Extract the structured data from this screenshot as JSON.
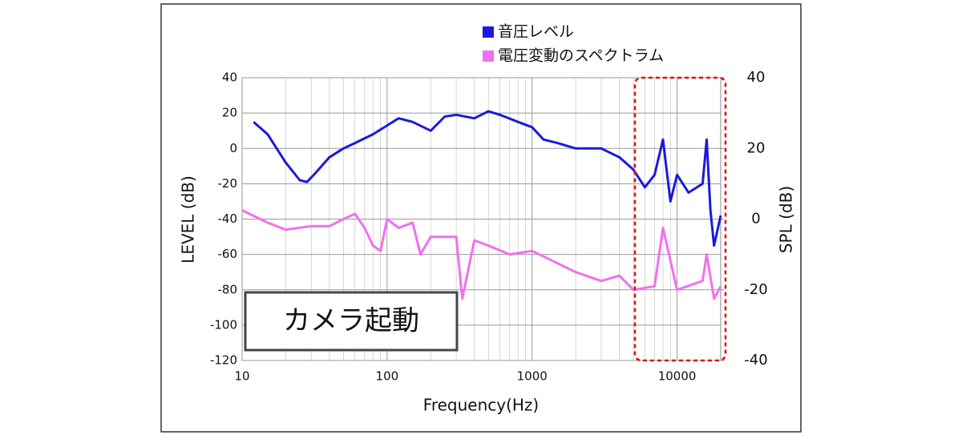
{
  "chart_data": {
    "type": "line",
    "xlabel": "Frequency(Hz)",
    "ylabel": "LEVEL (dB)",
    "y2label": "SPL (dB)",
    "annotation": "カメラ起動",
    "xscale": "log",
    "grid": true,
    "minor_grid": true,
    "legend": "top",
    "xlim": [
      10,
      20000
    ],
    "xticks": [
      10,
      100,
      1000,
      10000
    ],
    "ylim": [
      -120,
      40
    ],
    "yticks": [
      -120,
      -100,
      -80,
      -60,
      -40,
      -20,
      0,
      20,
      40
    ],
    "y2lim": [
      -40,
      40
    ],
    "y2ticks": [
      -40,
      -20,
      0,
      20,
      40
    ],
    "series": [
      {
        "name": "音圧レベル",
        "color": "#1a1adc",
        "axis": "y2",
        "x": [
          12,
          15,
          20,
          25,
          28,
          32,
          40,
          50,
          60,
          80,
          100,
          120,
          150,
          200,
          250,
          300,
          400,
          500,
          600,
          800,
          1000,
          1200,
          1500,
          2000,
          3000,
          4000,
          5000,
          6000,
          7000,
          8000,
          9000,
          10000,
          12000,
          15000,
          16000,
          17000,
          18000,
          20000
        ],
        "values": [
          27.5,
          24,
          16,
          11,
          10.5,
          13,
          17.5,
          20,
          21.5,
          24,
          26.5,
          28.5,
          27.5,
          25,
          29,
          29.5,
          28.5,
          30.5,
          29.5,
          27.5,
          26,
          22.5,
          21.5,
          20,
          20,
          17.5,
          14,
          9,
          12.5,
          22.5,
          5,
          12.5,
          7.5,
          10,
          22.5,
          2.5,
          -7.5,
          1
        ]
      },
      {
        "name": "電圧変動のスペクトラム",
        "color": "#f070f0",
        "x": [
          10,
          15,
          20,
          30,
          40,
          50,
          60,
          70,
          80,
          90,
          100,
          120,
          150,
          170,
          200,
          300,
          330,
          400,
          500,
          700,
          1000,
          1500,
          2000,
          3000,
          4000,
          5000,
          7000,
          8000,
          10000,
          15000,
          16000,
          18000,
          20000
        ],
        "values": [
          -35,
          -42,
          -46,
          -44,
          -44,
          -40,
          -37,
          -45,
          -55,
          -58,
          -40,
          -45,
          -42,
          -60,
          -50,
          -50,
          -85,
          -52,
          -55,
          -60,
          -58,
          -65,
          -70,
          -75,
          -72,
          -80,
          -78,
          -45,
          -80,
          -75,
          -60,
          -85,
          -78
        ]
      }
    ]
  }
}
